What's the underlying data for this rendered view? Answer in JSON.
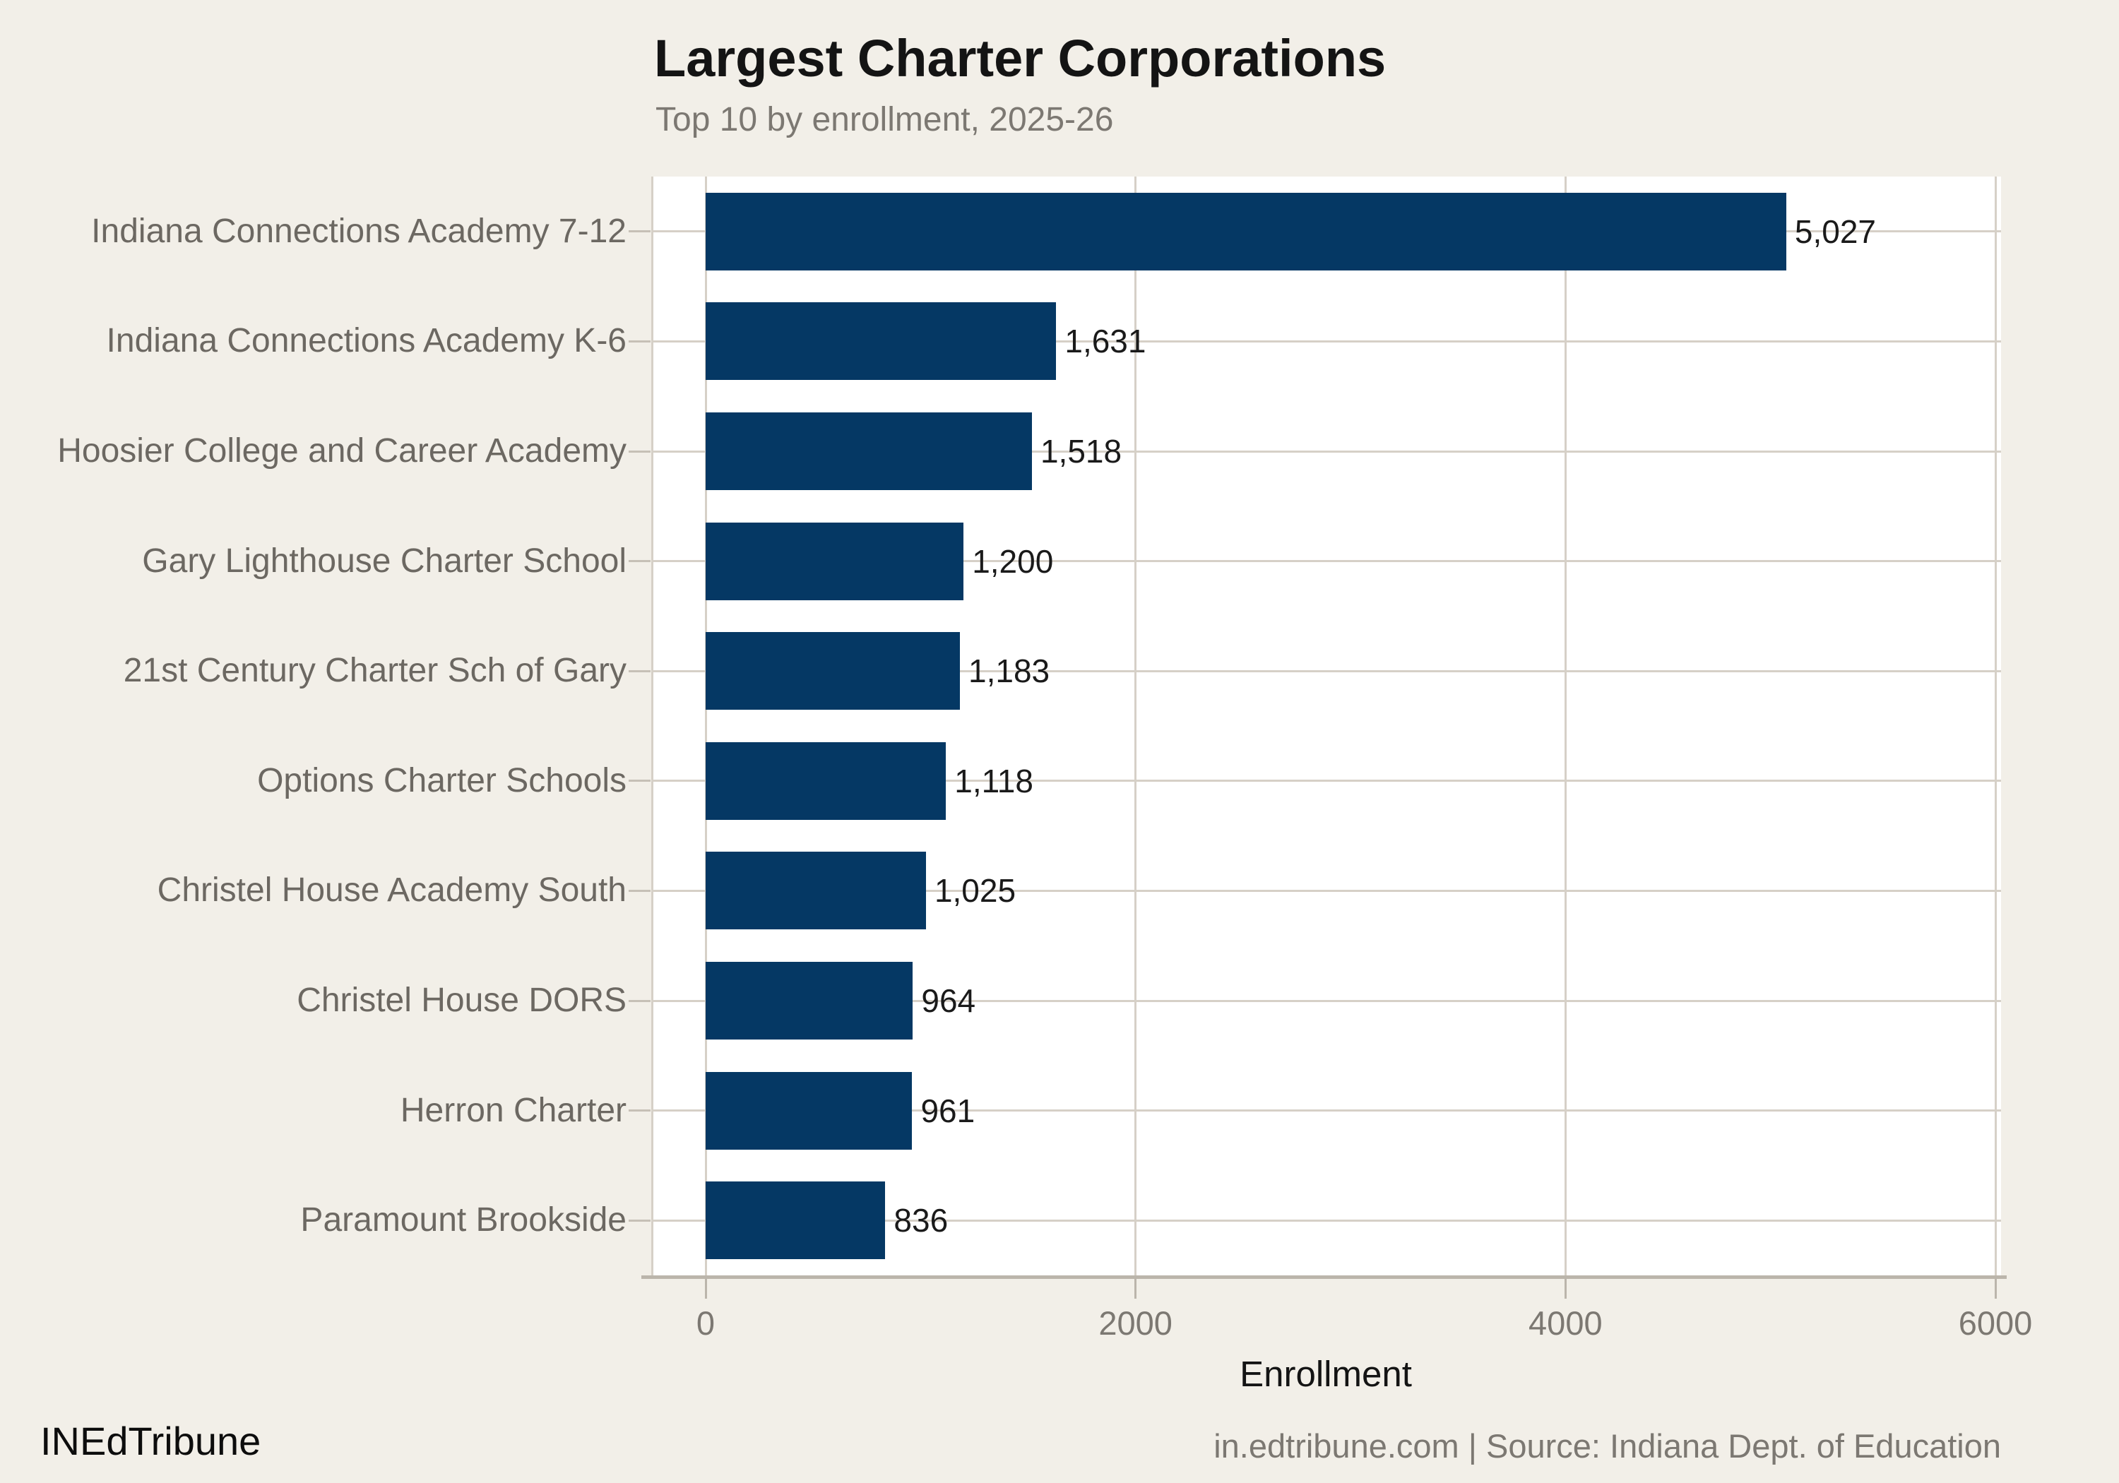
{
  "colors": {
    "background": "#F2EFE8",
    "panel": "#FFFFFF",
    "bar": "#053864",
    "grid": "#D6D0C7",
    "axis_tick": "#C6C0B6",
    "axis_line": "#BBB5AB",
    "title_text": "#141414",
    "muted_text": "#7C7872",
    "y_label_text": "#6C6862",
    "value_text": "#1A1A1A"
  },
  "chart_data": {
    "type": "bar",
    "orientation": "horizontal",
    "title": "Largest Charter Corporations",
    "subtitle": "Top 10 by enrollment, 2025-26",
    "categories": [
      "Indiana Connections Academy 7-12",
      "Indiana Connections Academy K-6",
      "Hoosier College and Career Academy",
      "Gary Lighthouse Charter School",
      "21st Century Charter Sch of Gary",
      "Options Charter Schools",
      "Christel House Academy South",
      "Christel House DORS",
      "Herron Charter",
      "Paramount Brookside"
    ],
    "values": [
      5027,
      1631,
      1518,
      1200,
      1183,
      1118,
      1025,
      964,
      961,
      836
    ],
    "value_labels": [
      "5,027",
      "1,631",
      "1,518",
      "1,200",
      "1,183",
      "1,118",
      "1,025",
      "964",
      "961",
      "836"
    ],
    "xlabel": "Enrollment",
    "x_ticks": [
      0,
      2000,
      4000,
      6000
    ],
    "x_tick_labels": [
      "0",
      "2000",
      "4000",
      "6000"
    ],
    "xlim": [
      0,
      6000
    ],
    "grid": true,
    "legend_position": "none"
  },
  "footer": {
    "brand": "INEdTribune",
    "credit": "in.edtribune.com | Source: Indiana Dept. of Education"
  }
}
